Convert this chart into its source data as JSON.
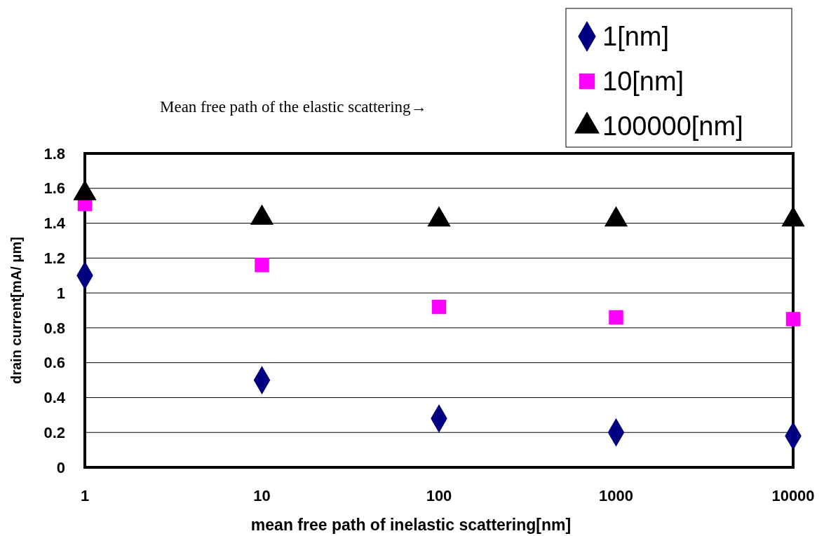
{
  "chart_data": {
    "type": "scatter",
    "xlabel": "mean free path of inelastic scattering[nm]",
    "ylabel": "drain current[mA/ μm]",
    "annotations": [
      "Mean free path of the elastic scattering→"
    ],
    "x": [
      1,
      10,
      100,
      1000,
      10000
    ],
    "log": "x",
    "xlim": [
      1,
      10000
    ],
    "xticks": [
      1,
      10,
      100,
      1000,
      10000
    ],
    "ylim": [
      0,
      1.8
    ],
    "yticks": [
      0,
      0.2,
      0.4,
      0.6,
      0.8,
      1,
      1.2,
      1.4,
      1.6,
      1.8
    ],
    "grid": "y",
    "legend": "top right",
    "series": [
      {
        "name": "1[nm]",
        "color": "#000080",
        "marker": "diamond",
        "values": [
          1.1,
          0.5,
          0.28,
          0.2,
          0.18
        ]
      },
      {
        "name": "10[nm]",
        "color": "#ff00ff",
        "marker": "square",
        "values": [
          1.51,
          1.16,
          0.92,
          0.86,
          0.85
        ]
      },
      {
        "name": "100000[nm]",
        "color": "#000000",
        "marker": "triangle",
        "values": [
          1.57,
          1.43,
          1.42,
          1.42,
          1.42
        ]
      }
    ]
  }
}
